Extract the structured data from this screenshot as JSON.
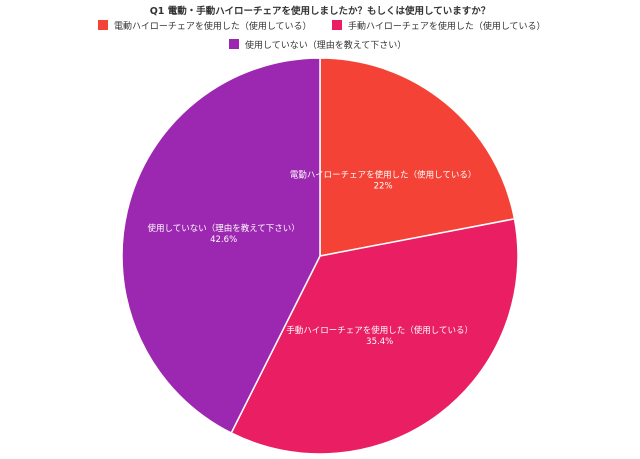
{
  "chart_data": {
    "type": "pie",
    "title": "Q1 電動・手動ハイローチェアを使用しましたか？もしくは使用していますか？",
    "legend_position": "top",
    "slices": [
      {
        "label": "電動ハイローチェアを使用した（使用している）",
        "value": 22,
        "value_label": "22%",
        "color": "#f44336"
      },
      {
        "label": "手動ハイローチェアを使用した（使用している）",
        "value": 35.4,
        "value_label": "35.4%",
        "color": "#e91e63"
      },
      {
        "label": "使用していない（理由を教えて下さい）",
        "value": 42.6,
        "value_label": "42.6%",
        "color": "#9c27b0"
      }
    ]
  }
}
